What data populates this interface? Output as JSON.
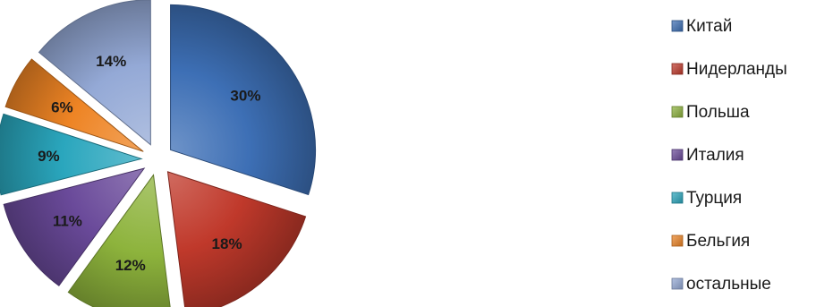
{
  "chart_data": {
    "type": "pie",
    "exploded": true,
    "style": "3d-shaded",
    "legend_position": "right",
    "slices": [
      {
        "label": "Китай",
        "value": 30,
        "value_label": "30%",
        "color": "#3d6fb5"
      },
      {
        "label": "Нидерланды",
        "value": 18,
        "value_label": "18%",
        "color": "#c0392b"
      },
      {
        "label": "Польша",
        "value": 12,
        "value_label": "12%",
        "color": "#8db33c"
      },
      {
        "label": "Италия",
        "value": 11,
        "value_label": "11%",
        "color": "#6a4a9a"
      },
      {
        "label": "Турция",
        "value": 9,
        "value_label": "9%",
        "color": "#2aa6bd"
      },
      {
        "label": "Бельгия",
        "value": 6,
        "value_label": "6%",
        "color": "#ee8424"
      },
      {
        "label": "остальные",
        "value": 14,
        "value_label": "14%",
        "color": "#94a9d6"
      }
    ]
  }
}
